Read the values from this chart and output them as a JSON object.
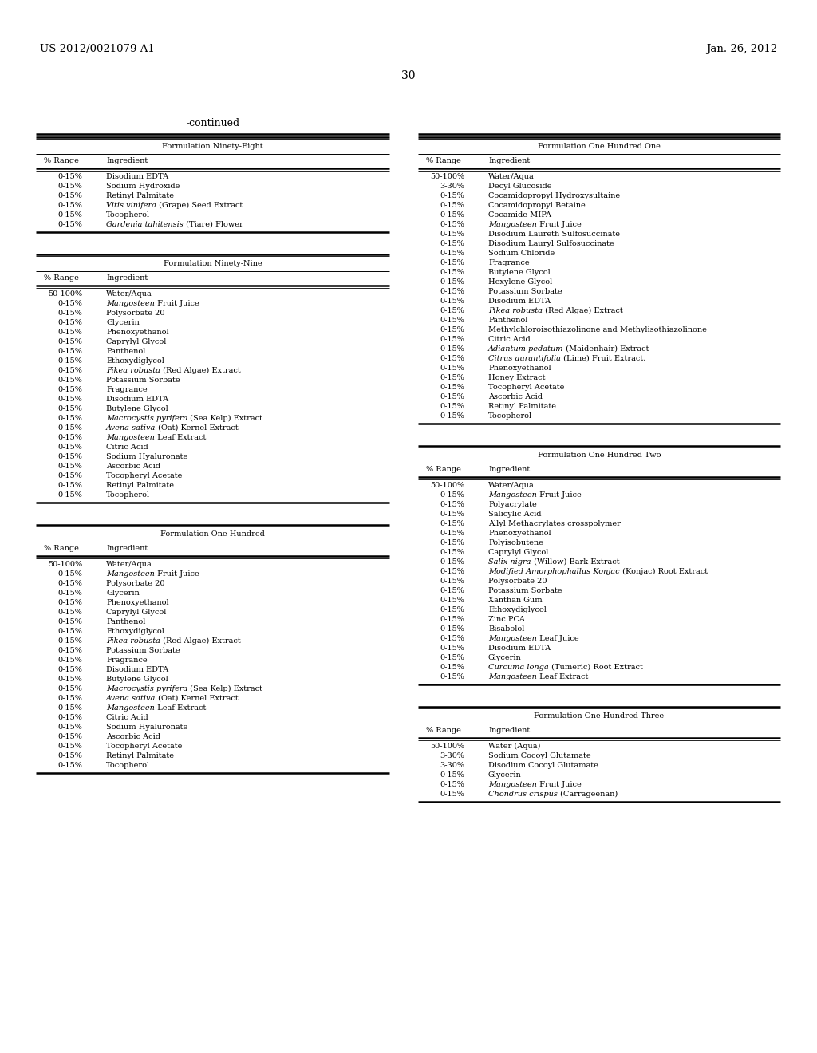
{
  "header_left": "US 2012/0021079 A1",
  "header_right": "Jan. 26, 2012",
  "page_number": "30",
  "continued_label": "-continued",
  "background_color": "#ffffff",
  "text_color": "#000000",
  "font_size": 7.0,
  "tables": [
    {
      "id": "left_top",
      "title": "Formulation Ninety-Eight",
      "col1_header": "% Range",
      "col2_header": "Ingredient",
      "rows": [
        {
          "range": "0-15%",
          "ingredient": "Disodium EDTA",
          "italic_part": "",
          "plain_part": "Disodium EDTA"
        },
        {
          "range": "0-15%",
          "ingredient": "Sodium Hydroxide",
          "italic_part": "",
          "plain_part": "Sodium Hydroxide"
        },
        {
          "range": "0-15%",
          "ingredient": "Retinyl Palmitate",
          "italic_part": "",
          "plain_part": "Retinyl Palmitate"
        },
        {
          "range": "0-15%",
          "ingredient": "Vitis vinifera (Grape) Seed Extract",
          "italic_part": "Vitis vinifera",
          "plain_part": " (Grape) Seed Extract"
        },
        {
          "range": "0-15%",
          "ingredient": "Tocopherol",
          "italic_part": "",
          "plain_part": "Tocopherol"
        },
        {
          "range": "0-15%",
          "ingredient": "Gardenia tahitensis (Tiare) Flower",
          "italic_part": "Gardenia tahitensis",
          "plain_part": " (Tiare) Flower"
        }
      ]
    },
    {
      "id": "left_mid",
      "title": "Formulation Ninety-Nine",
      "col1_header": "% Range",
      "col2_header": "Ingredient",
      "rows": [
        {
          "range": "50-100%",
          "ingredient": "Water/Aqua",
          "italic_part": "",
          "plain_part": "Water/Aqua"
        },
        {
          "range": "0-15%",
          "ingredient": "Mangosteen Fruit Juice",
          "italic_part": "Mangosteen",
          "plain_part": " Fruit Juice"
        },
        {
          "range": "0-15%",
          "ingredient": "Polysorbate 20",
          "italic_part": "",
          "plain_part": "Polysorbate 20"
        },
        {
          "range": "0-15%",
          "ingredient": "Glycerin",
          "italic_part": "",
          "plain_part": "Glycerin"
        },
        {
          "range": "0-15%",
          "ingredient": "Phenoxyethanol",
          "italic_part": "",
          "plain_part": "Phenoxyethanol"
        },
        {
          "range": "0-15%",
          "ingredient": "Caprylyl Glycol",
          "italic_part": "",
          "plain_part": "Caprylyl Glycol"
        },
        {
          "range": "0-15%",
          "ingredient": "Panthenol",
          "italic_part": "",
          "plain_part": "Panthenol"
        },
        {
          "range": "0-15%",
          "ingredient": "Ethoxydiglycol",
          "italic_part": "",
          "plain_part": "Ethoxydiglycol"
        },
        {
          "range": "0-15%",
          "ingredient": "Pikea robusta (Red Algae) Extract",
          "italic_part": "Pikea robusta",
          "plain_part": " (Red Algae) Extract"
        },
        {
          "range": "0-15%",
          "ingredient": "Potassium Sorbate",
          "italic_part": "",
          "plain_part": "Potassium Sorbate"
        },
        {
          "range": "0-15%",
          "ingredient": "Fragrance",
          "italic_part": "",
          "plain_part": "Fragrance"
        },
        {
          "range": "0-15%",
          "ingredient": "Disodium EDTA",
          "italic_part": "",
          "plain_part": "Disodium EDTA"
        },
        {
          "range": "0-15%",
          "ingredient": "Butylene Glycol",
          "italic_part": "",
          "plain_part": "Butylene Glycol"
        },
        {
          "range": "0-15%",
          "ingredient": "Macrocystis pyrifera (Sea Kelp) Extract",
          "italic_part": "Macrocystis pyrifera",
          "plain_part": " (Sea Kelp) Extract"
        },
        {
          "range": "0-15%",
          "ingredient": "Avena sativa (Oat) Kernel Extract",
          "italic_part": "Avena sativa",
          "plain_part": " (Oat) Kernel Extract"
        },
        {
          "range": "0-15%",
          "ingredient": "Mangosteen Leaf Extract",
          "italic_part": "Mangosteen",
          "plain_part": " Leaf Extract"
        },
        {
          "range": "0-15%",
          "ingredient": "Citric Acid",
          "italic_part": "",
          "plain_part": "Citric Acid"
        },
        {
          "range": "0-15%",
          "ingredient": "Sodium Hyaluronate",
          "italic_part": "",
          "plain_part": "Sodium Hyaluronate"
        },
        {
          "range": "0-15%",
          "ingredient": "Ascorbic Acid",
          "italic_part": "",
          "plain_part": "Ascorbic Acid"
        },
        {
          "range": "0-15%",
          "ingredient": "Tocopheryl Acetate",
          "italic_part": "",
          "plain_part": "Tocopheryl Acetate"
        },
        {
          "range": "0-15%",
          "ingredient": "Retinyl Palmitate",
          "italic_part": "",
          "plain_part": "Retinyl Palmitate"
        },
        {
          "range": "0-15%",
          "ingredient": "Tocopherol",
          "italic_part": "",
          "plain_part": "Tocopherol"
        }
      ]
    },
    {
      "id": "left_bot",
      "title": "Formulation One Hundred",
      "col1_header": "% Range",
      "col2_header": "Ingredient",
      "rows": [
        {
          "range": "50-100%",
          "ingredient": "Water/Aqua",
          "italic_part": "",
          "plain_part": "Water/Aqua"
        },
        {
          "range": "0-15%",
          "ingredient": "Mangosteen Fruit Juice",
          "italic_part": "Mangosteen",
          "plain_part": " Fruit Juice"
        },
        {
          "range": "0-15%",
          "ingredient": "Polysorbate 20",
          "italic_part": "",
          "plain_part": "Polysorbate 20"
        },
        {
          "range": "0-15%",
          "ingredient": "Glycerin",
          "italic_part": "",
          "plain_part": "Glycerin"
        },
        {
          "range": "0-15%",
          "ingredient": "Phenoxyethanol",
          "italic_part": "",
          "plain_part": "Phenoxyethanol"
        },
        {
          "range": "0-15%",
          "ingredient": "Caprylyl Glycol",
          "italic_part": "",
          "plain_part": "Caprylyl Glycol"
        },
        {
          "range": "0-15%",
          "ingredient": "Panthenol",
          "italic_part": "",
          "plain_part": "Panthenol"
        },
        {
          "range": "0-15%",
          "ingredient": "Ethoxydiglycol",
          "italic_part": "",
          "plain_part": "Ethoxydiglycol"
        },
        {
          "range": "0-15%",
          "ingredient": "Pikea robusta (Red Algae) Extract",
          "italic_part": "Pikea robusta",
          "plain_part": " (Red Algae) Extract"
        },
        {
          "range": "0-15%",
          "ingredient": "Potassium Sorbate",
          "italic_part": "",
          "plain_part": "Potassium Sorbate"
        },
        {
          "range": "0-15%",
          "ingredient": "Fragrance",
          "italic_part": "",
          "plain_part": "Fragrance"
        },
        {
          "range": "0-15%",
          "ingredient": "Disodium EDTA",
          "italic_part": "",
          "plain_part": "Disodium EDTA"
        },
        {
          "range": "0-15%",
          "ingredient": "Butylene Glycol",
          "italic_part": "",
          "plain_part": "Butylene Glycol"
        },
        {
          "range": "0-15%",
          "ingredient": "Macrocystis pyrifera (Sea Kelp) Extract",
          "italic_part": "Macrocystis pyrifera",
          "plain_part": " (Sea Kelp) Extract"
        },
        {
          "range": "0-15%",
          "ingredient": "Avena sativa (Oat) Kernel Extract",
          "italic_part": "Avena sativa",
          "plain_part": " (Oat) Kernel Extract"
        },
        {
          "range": "0-15%",
          "ingredient": "Mangosteen Leaf Extract",
          "italic_part": "Mangosteen",
          "plain_part": " Leaf Extract"
        },
        {
          "range": "0-15%",
          "ingredient": "Citric Acid",
          "italic_part": "",
          "plain_part": "Citric Acid"
        },
        {
          "range": "0-15%",
          "ingredient": "Sodium Hyaluronate",
          "italic_part": "",
          "plain_part": "Sodium Hyaluronate"
        },
        {
          "range": "0-15%",
          "ingredient": "Ascorbic Acid",
          "italic_part": "",
          "plain_part": "Ascorbic Acid"
        },
        {
          "range": "0-15%",
          "ingredient": "Tocopheryl Acetate",
          "italic_part": "",
          "plain_part": "Tocopheryl Acetate"
        },
        {
          "range": "0-15%",
          "ingredient": "Retinyl Palmitate",
          "italic_part": "",
          "plain_part": "Retinyl Palmitate"
        },
        {
          "range": "0-15%",
          "ingredient": "Tocopherol",
          "italic_part": "",
          "plain_part": "Tocopherol"
        }
      ]
    },
    {
      "id": "right_top",
      "title": "Formulation One Hundred One",
      "col1_header": "% Range",
      "col2_header": "Ingredient",
      "rows": [
        {
          "range": "50-100%",
          "ingredient": "Water/Aqua",
          "italic_part": "",
          "plain_part": "Water/Aqua"
        },
        {
          "range": "3-30%",
          "ingredient": "Decyl Glucoside",
          "italic_part": "",
          "plain_part": "Decyl Glucoside"
        },
        {
          "range": "0-15%",
          "ingredient": "Cocamidopropyl Hydroxysultaine",
          "italic_part": "",
          "plain_part": "Cocamidopropyl Hydroxysultaine"
        },
        {
          "range": "0-15%",
          "ingredient": "Cocamidopropyl Betaine",
          "italic_part": "",
          "plain_part": "Cocamidopropyl Betaine"
        },
        {
          "range": "0-15%",
          "ingredient": "Cocamide MIPA",
          "italic_part": "",
          "plain_part": "Cocamide MIPA"
        },
        {
          "range": "0-15%",
          "ingredient": "Mangosteen Fruit Juice",
          "italic_part": "Mangosteen",
          "plain_part": " Fruit Juice"
        },
        {
          "range": "0-15%",
          "ingredient": "Disodium Laureth Sulfosuccinate",
          "italic_part": "",
          "plain_part": "Disodium Laureth Sulfosuccinate"
        },
        {
          "range": "0-15%",
          "ingredient": "Disodium Lauryl Sulfosuccinate",
          "italic_part": "",
          "plain_part": "Disodium Lauryl Sulfosuccinate"
        },
        {
          "range": "0-15%",
          "ingredient": "Sodium Chloride",
          "italic_part": "",
          "plain_part": "Sodium Chloride"
        },
        {
          "range": "0-15%",
          "ingredient": "Fragrance",
          "italic_part": "",
          "plain_part": "Fragrance"
        },
        {
          "range": "0-15%",
          "ingredient": "Butylene Glycol",
          "italic_part": "",
          "plain_part": "Butylene Glycol"
        },
        {
          "range": "0-15%",
          "ingredient": "Hexylene Glycol",
          "italic_part": "",
          "plain_part": "Hexylene Glycol"
        },
        {
          "range": "0-15%",
          "ingredient": "Potassium Sorbate",
          "italic_part": "",
          "plain_part": "Potassium Sorbate"
        },
        {
          "range": "0-15%",
          "ingredient": "Disodium EDTA",
          "italic_part": "",
          "plain_part": "Disodium EDTA"
        },
        {
          "range": "0-15%",
          "ingredient": "Pikea robusta (Red Algae) Extract",
          "italic_part": "Pikea robusta",
          "plain_part": " (Red Algae) Extract"
        },
        {
          "range": "0-15%",
          "ingredient": "Panthenol",
          "italic_part": "",
          "plain_part": "Panthenol"
        },
        {
          "range": "0-15%",
          "ingredient": "Methylchloroisothiazolinone and Methylisothiazolinone",
          "italic_part": "",
          "plain_part": "Methylchloroisothiazolinone and Methylisothiazolinone"
        },
        {
          "range": "0-15%",
          "ingredient": "Citric Acid",
          "italic_part": "",
          "plain_part": "Citric Acid"
        },
        {
          "range": "0-15%",
          "ingredient": "Adiantum pedatum (Maidenhair) Extract",
          "italic_part": "Adiantum pedatum",
          "plain_part": " (Maidenhair) Extract"
        },
        {
          "range": "0-15%",
          "ingredient": "Citrus aurantifolia (Lime) Fruit Extract.",
          "italic_part": "Citrus aurantifolia",
          "plain_part": " (Lime) Fruit Extract."
        },
        {
          "range": "0-15%",
          "ingredient": "Phenoxyethanol",
          "italic_part": "",
          "plain_part": "Phenoxyethanol"
        },
        {
          "range": "0-15%",
          "ingredient": "Honey Extract",
          "italic_part": "",
          "plain_part": "Honey Extract"
        },
        {
          "range": "0-15%",
          "ingredient": "Tocopheryl Acetate",
          "italic_part": "",
          "plain_part": "Tocopheryl Acetate"
        },
        {
          "range": "0-15%",
          "ingredient": "Ascorbic Acid",
          "italic_part": "",
          "plain_part": "Ascorbic Acid"
        },
        {
          "range": "0-15%",
          "ingredient": "Retinyl Palmitate",
          "italic_part": "",
          "plain_part": "Retinyl Palmitate"
        },
        {
          "range": "0-15%",
          "ingredient": "Tocopherol",
          "italic_part": "",
          "plain_part": "Tocopherol"
        }
      ]
    },
    {
      "id": "right_mid",
      "title": "Formulation One Hundred Two",
      "col1_header": "% Range",
      "col2_header": "Ingredient",
      "rows": [
        {
          "range": "50-100%",
          "ingredient": "Water/Aqua",
          "italic_part": "",
          "plain_part": "Water/Aqua"
        },
        {
          "range": "0-15%",
          "ingredient": "Mangosteen Fruit Juice",
          "italic_part": "Mangosteen",
          "plain_part": " Fruit Juice"
        },
        {
          "range": "0-15%",
          "ingredient": "Polyacrylate",
          "italic_part": "",
          "plain_part": "Polyacrylate"
        },
        {
          "range": "0-15%",
          "ingredient": "Salicylic Acid",
          "italic_part": "",
          "plain_part": "Salicylic Acid"
        },
        {
          "range": "0-15%",
          "ingredient": "Allyl Methacrylates crosspolymer",
          "italic_part": "",
          "plain_part": "Allyl Methacrylates crosspolymer"
        },
        {
          "range": "0-15%",
          "ingredient": "Phenoxyethanol",
          "italic_part": "",
          "plain_part": "Phenoxyethanol"
        },
        {
          "range": "0-15%",
          "ingredient": "Polyisobutene",
          "italic_part": "",
          "plain_part": "Polyisobutene"
        },
        {
          "range": "0-15%",
          "ingredient": "Caprylyl Glycol",
          "italic_part": "",
          "plain_part": "Caprylyl Glycol"
        },
        {
          "range": "0-15%",
          "ingredient": "Salix nigra (Willow) Bark Extract",
          "italic_part": "Salix nigra",
          "plain_part": " (Willow) Bark Extract"
        },
        {
          "range": "0-15%",
          "ingredient": "Modified Amorphophallus Konjac (Konjac) Root Extract",
          "italic_part": "Modified Amorphophallus Konjac",
          "plain_part": " (Konjac) Root Extract"
        },
        {
          "range": "0-15%",
          "ingredient": "Polysorbate 20",
          "italic_part": "",
          "plain_part": "Polysorbate 20"
        },
        {
          "range": "0-15%",
          "ingredient": "Potassium Sorbate",
          "italic_part": "",
          "plain_part": "Potassium Sorbate"
        },
        {
          "range": "0-15%",
          "ingredient": "Xanthan Gum",
          "italic_part": "",
          "plain_part": "Xanthan Gum"
        },
        {
          "range": "0-15%",
          "ingredient": "Ethoxydiglycol",
          "italic_part": "",
          "plain_part": "Ethoxydiglycol"
        },
        {
          "range": "0-15%",
          "ingredient": "Zinc PCA",
          "italic_part": "",
          "plain_part": "Zinc PCA"
        },
        {
          "range": "0-15%",
          "ingredient": "Bisabolol",
          "italic_part": "",
          "plain_part": "Bisabolol"
        },
        {
          "range": "0-15%",
          "ingredient": "Mangosteen Leaf Juice",
          "italic_part": "Mangosteen",
          "plain_part": " Leaf Juice"
        },
        {
          "range": "0-15%",
          "ingredient": "Disodium EDTA",
          "italic_part": "",
          "plain_part": "Disodium EDTA"
        },
        {
          "range": "0-15%",
          "ingredient": "Glycerin",
          "italic_part": "",
          "plain_part": "Glycerin"
        },
        {
          "range": "0-15%",
          "ingredient": "Curcuma longa (Tumeric) Root Extract",
          "italic_part": "Curcuma longa",
          "plain_part": " (Tumeric) Root Extract"
        },
        {
          "range": "0-15%",
          "ingredient": "Mangosteen Leaf Extract",
          "italic_part": "Mangosteen",
          "plain_part": " Leaf Extract"
        }
      ]
    },
    {
      "id": "right_bot",
      "title": "Formulation One Hundred Three",
      "col1_header": "% Range",
      "col2_header": "Ingredient",
      "rows": [
        {
          "range": "50-100%",
          "ingredient": "Water (Aqua)",
          "italic_part": "",
          "plain_part": "Water (Aqua)"
        },
        {
          "range": "3-30%",
          "ingredient": "Sodium Cocoyl Glutamate",
          "italic_part": "",
          "plain_part": "Sodium Cocoyl Glutamate"
        },
        {
          "range": "3-30%",
          "ingredient": "Disodium Cocoyl Glutamate",
          "italic_part": "",
          "plain_part": "Disodium Cocoyl Glutamate"
        },
        {
          "range": "0-15%",
          "ingredient": "Glycerin",
          "italic_part": "",
          "plain_part": "Glycerin"
        },
        {
          "range": "0-15%",
          "ingredient": "Mangosteen Fruit Juice",
          "italic_part": "Mangosteen",
          "plain_part": " Fruit Juice"
        },
        {
          "range": "0-15%",
          "ingredient": "Chondrus crispus (Carrageenan)",
          "italic_part": "Chondrus crispus",
          "plain_part": " (Carrageenan)"
        }
      ]
    }
  ]
}
